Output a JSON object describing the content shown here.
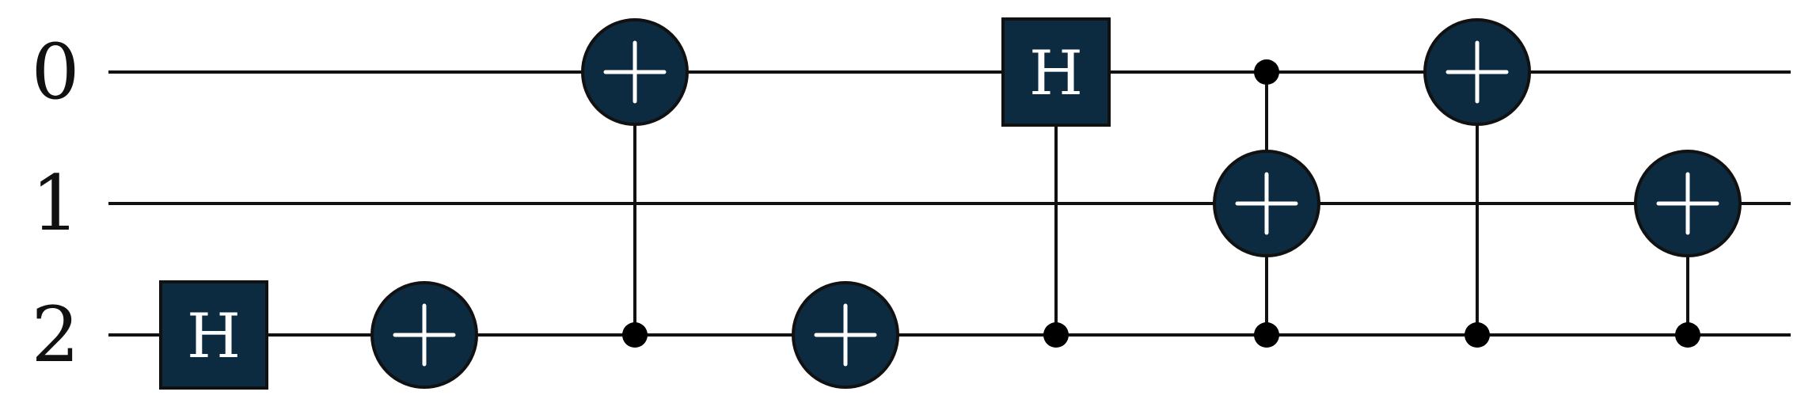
{
  "colors": {
    "wire": "#111111",
    "gate_fill": "#0c2a40",
    "gate_stroke": "#111111",
    "gate_symbol": "#ffffff",
    "control_dot": "#000000"
  },
  "qubits": [
    {
      "id": 0,
      "label": "0"
    },
    {
      "id": 1,
      "label": "1"
    },
    {
      "id": 2,
      "label": "2"
    }
  ],
  "gates": [
    {
      "type": "H",
      "label": "H",
      "target": 2,
      "step": 0
    },
    {
      "type": "X",
      "target": 2,
      "step": 1
    },
    {
      "type": "CNOT",
      "target": 0,
      "control": 2,
      "step": 2
    },
    {
      "type": "X",
      "target": 2,
      "step": 3
    },
    {
      "type": "CH",
      "label": "H",
      "target": 0,
      "control": 2,
      "step": 4
    },
    {
      "type": "CCX",
      "target": 1,
      "controls": [
        0,
        2
      ],
      "step": 5
    },
    {
      "type": "CNOT",
      "target": 0,
      "control": 2,
      "step": 6
    },
    {
      "type": "CNOT",
      "target": 1,
      "control": 2,
      "step": 7
    }
  ]
}
